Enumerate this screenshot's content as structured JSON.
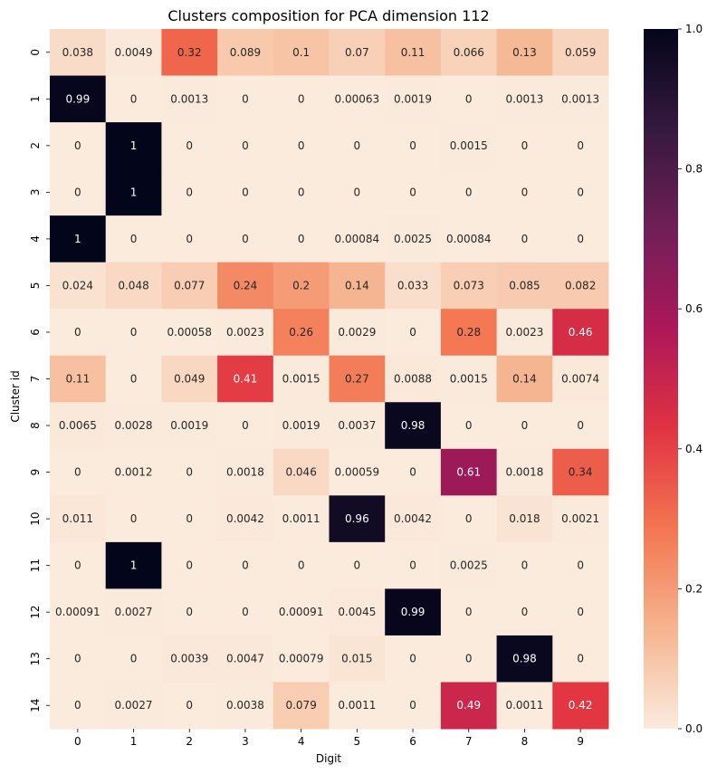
{
  "chart_data": {
    "type": "heatmap",
    "title": "Clusters composition for PCA dimension 112",
    "xlabel": "Digit",
    "ylabel": "Cluster id",
    "x_categories": [
      "0",
      "1",
      "2",
      "3",
      "4",
      "5",
      "6",
      "7",
      "8",
      "9"
    ],
    "y_categories": [
      "0",
      "1",
      "2",
      "3",
      "4",
      "5",
      "6",
      "7",
      "8",
      "9",
      "10",
      "11",
      "12",
      "13",
      "14"
    ],
    "values": [
      [
        0.038,
        0.0049,
        0.32,
        0.089,
        0.1,
        0.07,
        0.11,
        0.066,
        0.13,
        0.059
      ],
      [
        0.99,
        0,
        0.0013,
        0,
        0,
        0.00063,
        0.0019,
        0,
        0.0013,
        0.0013
      ],
      [
        0,
        1,
        0,
        0,
        0,
        0,
        0,
        0.0015,
        0,
        0
      ],
      [
        0,
        1,
        0,
        0,
        0,
        0,
        0,
        0,
        0,
        0
      ],
      [
        1,
        0,
        0,
        0,
        0,
        0.00084,
        0.0025,
        0.00084,
        0,
        0
      ],
      [
        0.024,
        0.048,
        0.077,
        0.24,
        0.2,
        0.14,
        0.033,
        0.073,
        0.085,
        0.082
      ],
      [
        0,
        0,
        0.00058,
        0.0023,
        0.26,
        0.0029,
        0,
        0.28,
        0.0023,
        0.46
      ],
      [
        0.11,
        0,
        0.049,
        0.41,
        0.0015,
        0.27,
        0.0088,
        0.0015,
        0.14,
        0.0074
      ],
      [
        0.0065,
        0.0028,
        0.0019,
        0,
        0.0019,
        0.0037,
        0.98,
        0,
        0,
        0
      ],
      [
        0,
        0.0012,
        0,
        0.0018,
        0.046,
        0.00059,
        0,
        0.61,
        0.0018,
        0.34
      ],
      [
        0.011,
        0,
        0,
        0.0042,
        0.0011,
        0.96,
        0.0042,
        0,
        0.018,
        0.0021
      ],
      [
        0,
        1,
        0,
        0,
        0,
        0,
        0,
        0.0025,
        0,
        0
      ],
      [
        0.00091,
        0.0027,
        0,
        0,
        0.00091,
        0.0045,
        0.99,
        0,
        0,
        0
      ],
      [
        0,
        0,
        0.0039,
        0.0047,
        0.00079,
        0.015,
        0,
        0,
        0.98,
        0
      ],
      [
        0,
        0.0027,
        0,
        0.0038,
        0.079,
        0.0011,
        0,
        0.49,
        0.0011,
        0.42
      ]
    ],
    "cell_labels": [
      [
        "0.038",
        "0.0049",
        "0.32",
        "0.089",
        "0.1",
        "0.07",
        "0.11",
        "0.066",
        "0.13",
        "0.059"
      ],
      [
        "0.99",
        "0",
        "0.0013",
        "0",
        "0",
        "0.00063",
        "0.0019",
        "0",
        "0.0013",
        "0.0013"
      ],
      [
        "0",
        "1",
        "0",
        "0",
        "0",
        "0",
        "0",
        "0.0015",
        "0",
        "0"
      ],
      [
        "0",
        "1",
        "0",
        "0",
        "0",
        "0",
        "0",
        "0",
        "0",
        "0"
      ],
      [
        "1",
        "0",
        "0",
        "0",
        "0",
        "0.00084",
        "0.0025",
        "0.00084",
        "0",
        "0"
      ],
      [
        "0.024",
        "0.048",
        "0.077",
        "0.24",
        "0.2",
        "0.14",
        "0.033",
        "0.073",
        "0.085",
        "0.082"
      ],
      [
        "0",
        "0",
        "0.00058",
        "0.0023",
        "0.26",
        "0.0029",
        "0",
        "0.28",
        "0.0023",
        "0.46"
      ],
      [
        "0.11",
        "0",
        "0.049",
        "0.41",
        "0.0015",
        "0.27",
        "0.0088",
        "0.0015",
        "0.14",
        "0.0074"
      ],
      [
        "0.0065",
        "0.0028",
        "0.0019",
        "0",
        "0.0019",
        "0.0037",
        "0.98",
        "0",
        "0",
        "0"
      ],
      [
        "0",
        "0.0012",
        "0",
        "0.0018",
        "0.046",
        "0.00059",
        "0",
        "0.61",
        "0.0018",
        "0.34"
      ],
      [
        "0.011",
        "0",
        "0",
        "0.0042",
        "0.0011",
        "0.96",
        "0.0042",
        "0",
        "0.018",
        "0.0021"
      ],
      [
        "0",
        "1",
        "0",
        "0",
        "0",
        "0",
        "0",
        "0.0025",
        "0",
        "0"
      ],
      [
        "0.00091",
        "0.0027",
        "0",
        "0",
        "0.00091",
        "0.0045",
        "0.99",
        "0",
        "0",
        "0"
      ],
      [
        "0",
        "0",
        "0.0039",
        "0.0047",
        "0.00079",
        "0.015",
        "0",
        "0",
        "0.98",
        "0"
      ],
      [
        "0",
        "0.0027",
        "0",
        "0.0038",
        "0.079",
        "0.0011",
        "0",
        "0.49",
        "0.0011",
        "0.42"
      ]
    ],
    "colorbar": {
      "range": [
        0,
        1
      ],
      "ticks": [
        0,
        0.2,
        0.4,
        0.6,
        0.8,
        1
      ],
      "tick_labels": [
        "0.0",
        "0.2",
        "0.4",
        "0.6",
        "0.8",
        "1.0"
      ],
      "colormap": "rocket_r",
      "colors": [
        "#faebdd",
        "#f6b48f",
        "#f37651",
        "#e13342",
        "#ad1759",
        "#701f57",
        "#35193e",
        "#03051a"
      ]
    },
    "grid": false
  }
}
